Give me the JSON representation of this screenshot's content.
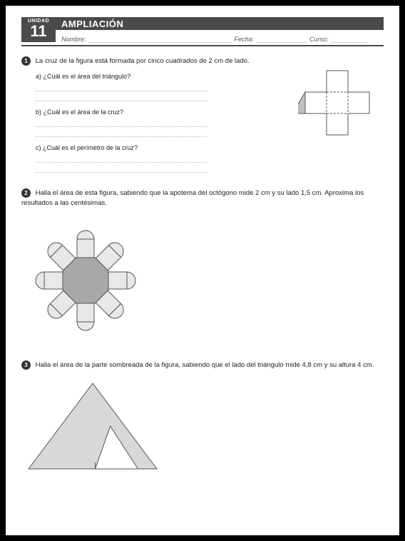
{
  "header": {
    "unit_label": "UNIDAD",
    "unit_number": "11",
    "title": "AMPLIACIÓN",
    "name_label": "Nombre:",
    "date_label": "Fecha:",
    "course_label": "Curso:"
  },
  "problems": {
    "p1": {
      "text": "La cruz de la figura está formada por cinco cuadrados de 2 cm de lado.",
      "a": "a)  ¿Cuál es el área del triángulo?",
      "b": "b)  ¿Cuál es el área de la cruz?",
      "c": "c)  ¿Cuál es el perímetro de la cruz?"
    },
    "p2": {
      "text": "Halla el área de esta figura, sabiendo que la apotema del octógono mide 2 cm y su lado 1,5 cm. Aproxima los resultados a las centésimas."
    },
    "p3": {
      "text": "Halla el área de la parte sombreada de la figura, sabiendo que el lado del triángulo mide  4,8 cm y su altura 4 cm."
    }
  },
  "figures": {
    "cross": {
      "square_side": 30,
      "stroke": "#555555",
      "fill": "#ffffff",
      "triangle_fill": "#bfbfbf",
      "dash": "3,2"
    },
    "octagon_flower": {
      "center_fill": "#a8a8a8",
      "petal_fill": "#e8e8e8",
      "stroke": "#555555",
      "apothem": 32,
      "side": 24,
      "petal_rect_h": 26,
      "petal_cap_r": 12
    },
    "triangle": {
      "base": 180,
      "height": 120,
      "stroke": "#555555",
      "shade_fill": "#d8d8d8",
      "inner_base": 60,
      "inner_height": 60
    }
  }
}
